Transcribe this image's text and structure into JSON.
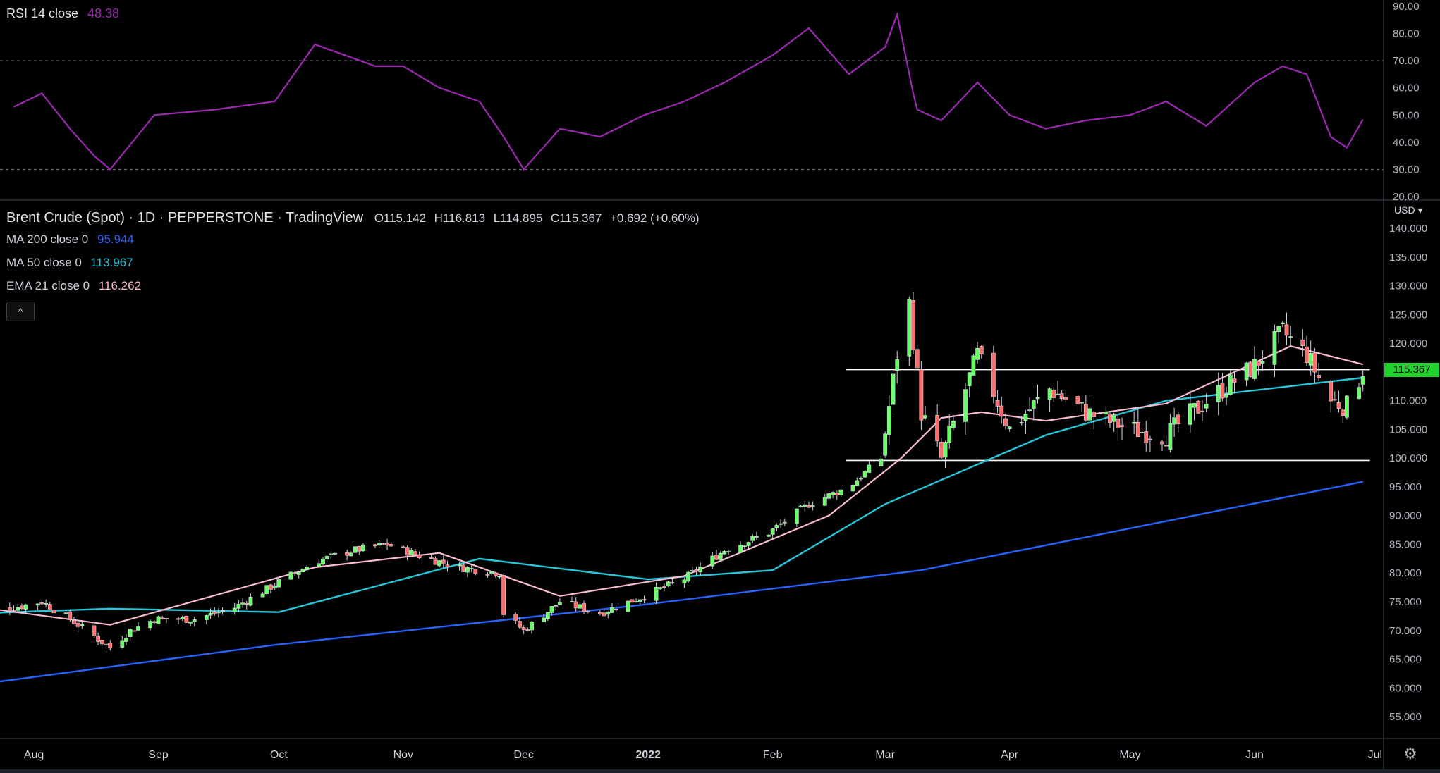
{
  "rsi_legend": {
    "label": "RSI 14 close",
    "value": "48.38",
    "value_color": "#9c27b0"
  },
  "main_legend": {
    "title": "Brent Crude (Spot) · 1D · PEPPERSTONE · TradingView",
    "open": "O115.142",
    "high": "H116.813",
    "low": "L114.895",
    "close": "C115.367",
    "change": "+0.692 (+0.60%)"
  },
  "ma_legends": [
    {
      "label": "MA 200 close 0",
      "value": "95.944",
      "color": "#2962ff"
    },
    {
      "label": "MA 50 close 0",
      "value": "113.967",
      "color": "#26c6da"
    },
    {
      "label": "EMA 21 close 0",
      "value": "116.262",
      "color": "#f8bbd0"
    }
  ],
  "collapse_glyph": "^",
  "currency_label": "USD ▾",
  "current_price": "115.367",
  "settings_glyph": "⚙",
  "chart_data": [
    {
      "type": "line",
      "name": "RSI 14 close",
      "y_ticks": [
        "90.00",
        "80.00",
        "70.00",
        "60.00",
        "50.00",
        "40.00",
        "30.00",
        "20.00"
      ],
      "ylim": [
        20,
        90
      ],
      "bands": [
        30,
        70
      ],
      "x": [
        "Jul 27",
        "Aug 3",
        "Aug 10",
        "Aug 16",
        "Aug 20",
        "Aug 31",
        "Sep 15",
        "Sep 30",
        "Oct 10",
        "Oct 25",
        "Nov 1",
        "Nov 10",
        "Nov 20",
        "Nov 26",
        "Dec 1",
        "Dec 10",
        "Dec 20",
        "Dec 31",
        "Jan 10",
        "Jan 20",
        "Feb 1",
        "Feb 10",
        "Feb 20",
        "Mar 1",
        "Mar 4",
        "Mar 8",
        "Mar 9",
        "Mar 15",
        "Mar 24",
        "Apr 1",
        "Apr 10",
        "Apr 20",
        "May 1",
        "May 10",
        "May 20",
        "Jun 1",
        "Jun 8",
        "Jun 14",
        "Jun 20",
        "Jun 24",
        "Jun 28"
      ],
      "values": [
        53,
        58,
        45,
        35,
        30,
        50,
        52,
        55,
        76,
        68,
        68,
        60,
        55,
        42,
        30,
        45,
        42,
        50,
        55,
        62,
        72,
        82,
        65,
        75,
        87,
        58,
        52,
        48,
        62,
        50,
        45,
        48,
        50,
        55,
        46,
        62,
        68,
        65,
        42,
        38,
        48.4
      ]
    },
    {
      "type": "candlestick",
      "name": "Brent Crude (Spot)",
      "y_ticks": [
        "140.000",
        "135.000",
        "130.000",
        "125.000",
        "120.000",
        "115.000",
        "110.000",
        "105.000",
        "100.000",
        "95.000",
        "90.000",
        "85.000",
        "80.000",
        "75.000",
        "70.000",
        "65.000",
        "60.000",
        "55.000"
      ],
      "ylim": [
        52.5,
        142
      ],
      "x_ticks": [
        "Aug",
        "Sep",
        "Oct",
        "Nov",
        "Dec",
        "2022",
        "Feb",
        "Mar",
        "Apr",
        "May",
        "Jun",
        "Jul"
      ],
      "close_path": {
        "x": [
          "Jul 27",
          "Aug 3",
          "Aug 10",
          "Aug 16",
          "Aug 20",
          "Aug 25",
          "Aug 31",
          "Sep 10",
          "Sep 20",
          "Sep 30",
          "Oct 10",
          "Oct 20",
          "Oct 28",
          "Nov 5",
          "Nov 15",
          "Nov 25",
          "Nov 26",
          "Dec 1",
          "Dec 10",
          "Dec 20",
          "Dec 31",
          "Jan 10",
          "Jan 20",
          "Jan 31",
          "Feb 10",
          "Feb 20",
          "Feb 28",
          "Mar 4",
          "Mar 7",
          "Mar 10",
          "Mar 15",
          "Mar 24",
          "Apr 1",
          "Apr 11",
          "Apr 20",
          "May 1",
          "May 10",
          "May 20",
          "Jun 1",
          "Jun 8",
          "Jun 14",
          "Jun 20",
          "Jun 24",
          "Jun 28"
        ],
        "values": [
          74,
          75,
          72,
          69,
          67,
          70,
          72,
          72,
          74,
          78,
          82,
          84,
          85,
          83,
          81,
          80,
          73,
          70,
          75,
          73,
          76,
          79,
          84,
          87,
          92,
          95,
          100,
          118,
          127,
          108,
          100,
          118,
          105,
          112,
          108,
          105,
          104,
          110,
          116,
          122,
          118,
          110,
          109,
          115.4
        ]
      },
      "ma200": {
        "x": [
          "Jul 19",
          "Sep 30",
          "Dec 31",
          "Mar 10",
          "Jun 28"
        ],
        "values": [
          60.7,
          67.5,
          74.5,
          80.5,
          95.9
        ]
      },
      "ma50": {
        "x": [
          "Jul 19",
          "Aug 20",
          "Oct 1",
          "Nov 20",
          "Jan 1",
          "Feb 1",
          "Mar 1",
          "Apr 10",
          "May 10",
          "Jun 28"
        ],
        "values": [
          73.0,
          73.8,
          73.2,
          82.5,
          78.9,
          80.5,
          92.0,
          104.0,
          110.0,
          114.0
        ]
      },
      "ema21": {
        "x": [
          "Jul 19",
          "Aug 20",
          "Oct 10",
          "Nov 10",
          "Dec 10",
          "Jan 10",
          "Feb 15",
          "Mar 5",
          "Mar 15",
          "Mar 25",
          "Apr 10",
          "May 10",
          "Jun 10",
          "Jun 28"
        ],
        "values": [
          74.0,
          71.0,
          81.0,
          83.5,
          76.0,
          79.5,
          90.0,
          100.0,
          107.0,
          108.0,
          106.5,
          109.5,
          119.5,
          116.3
        ]
      },
      "horizontal_lines": [
        {
          "value": 115.4,
          "from": "Mar 1",
          "to": "Jun 28"
        },
        {
          "value": 99.6,
          "from": "Mar 1",
          "to": "Jun 28"
        }
      ],
      "colors": {
        "up": "#66ff66",
        "down": "#ff6b6b",
        "ma200": "#2962ff",
        "ma50": "#26c6da",
        "ema21": "#f8bbd0"
      }
    }
  ]
}
